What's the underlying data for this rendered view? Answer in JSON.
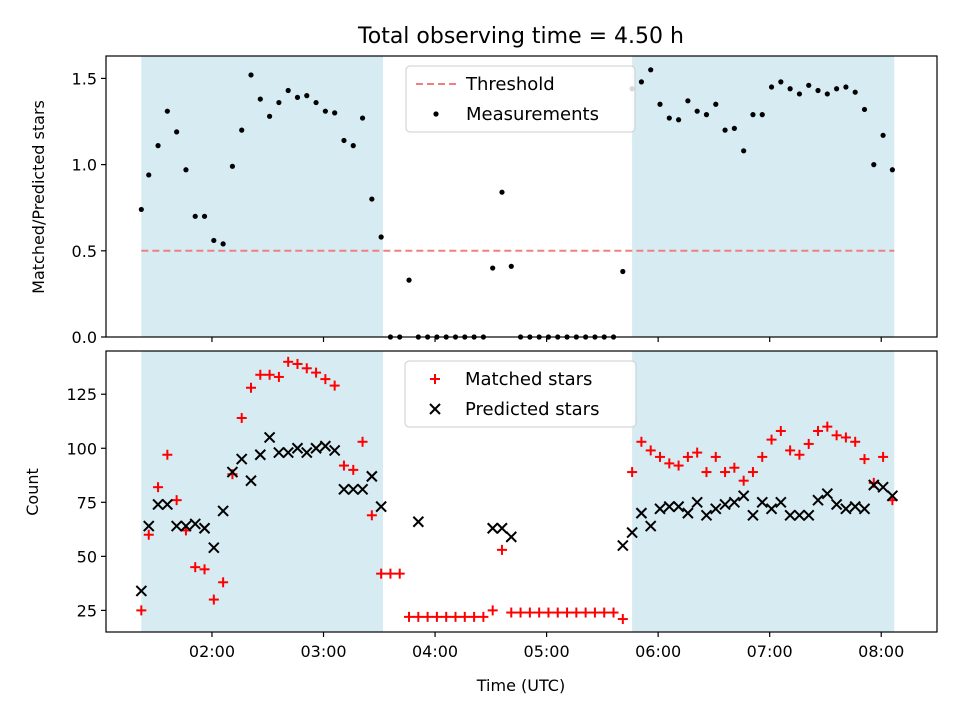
{
  "chart_data": [
    {
      "type": "scatter",
      "title": "Total observing time = 4.50 h",
      "xlabel": "",
      "ylabel": "Matched/Predicted stars",
      "ylim": [
        0,
        1.63
      ],
      "yticks": [
        "0.0",
        "0.5",
        "1.0",
        "1.5"
      ],
      "ytick_values": [
        0,
        0.5,
        1.0,
        1.5
      ],
      "legend": {
        "placement": "top-center",
        "entries": [
          "Threshold",
          "Measurements"
        ]
      },
      "threshold": {
        "name": "Threshold",
        "value": 0.5,
        "color": "#f08080"
      },
      "shaded_ranges": [
        [
          "01:22",
          "03:32"
        ],
        [
          "05:46",
          "08:07"
        ]
      ],
      "shade_color": "#add8e6",
      "series": [
        {
          "name": "Measurements",
          "color": "#000000",
          "points": [
            [
              "01:22",
              0.74
            ],
            [
              "01:26",
              0.94
            ],
            [
              "01:31",
              1.11
            ],
            [
              "01:36",
              1.31
            ],
            [
              "01:41",
              1.19
            ],
            [
              "01:46",
              0.97
            ],
            [
              "01:51",
              0.7
            ],
            [
              "01:56",
              0.7
            ],
            [
              "02:01",
              0.56
            ],
            [
              "02:06",
              0.54
            ],
            [
              "02:11",
              0.99
            ],
            [
              "02:16",
              1.2
            ],
            [
              "02:21",
              1.52
            ],
            [
              "02:26",
              1.38
            ],
            [
              "02:31",
              1.28
            ],
            [
              "02:36",
              1.36
            ],
            [
              "02:41",
              1.43
            ],
            [
              "02:46",
              1.39
            ],
            [
              "02:51",
              1.4
            ],
            [
              "02:56",
              1.36
            ],
            [
              "03:01",
              1.31
            ],
            [
              "03:06",
              1.3
            ],
            [
              "03:11",
              1.14
            ],
            [
              "03:16",
              1.11
            ],
            [
              "03:21",
              1.27
            ],
            [
              "03:26",
              0.8
            ],
            [
              "03:31",
              0.58
            ],
            [
              "03:36",
              0.0
            ],
            [
              "03:41",
              0.0
            ],
            [
              "03:46",
              0.33
            ],
            [
              "03:51",
              0.0
            ],
            [
              "03:56",
              0.0
            ],
            [
              "04:01",
              0.0
            ],
            [
              "04:06",
              0.0
            ],
            [
              "04:11",
              0.0
            ],
            [
              "04:16",
              0.0
            ],
            [
              "04:21",
              0.0
            ],
            [
              "04:26",
              0.0
            ],
            [
              "04:31",
              0.4
            ],
            [
              "04:36",
              0.84
            ],
            [
              "04:41",
              0.41
            ],
            [
              "04:46",
              0.0
            ],
            [
              "04:51",
              0.0
            ],
            [
              "04:56",
              0.0
            ],
            [
              "05:01",
              0.0
            ],
            [
              "05:06",
              0.0
            ],
            [
              "05:11",
              0.0
            ],
            [
              "05:16",
              0.0
            ],
            [
              "05:21",
              0.0
            ],
            [
              "05:26",
              0.0
            ],
            [
              "05:31",
              0.0
            ],
            [
              "05:36",
              0.0
            ],
            [
              "05:41",
              0.38
            ],
            [
              "05:46",
              1.44
            ],
            [
              "05:51",
              1.48
            ],
            [
              "05:56",
              1.55
            ],
            [
              "06:01",
              1.35
            ],
            [
              "06:06",
              1.27
            ],
            [
              "06:11",
              1.26
            ],
            [
              "06:16",
              1.37
            ],
            [
              "06:21",
              1.31
            ],
            [
              "06:26",
              1.29
            ],
            [
              "06:31",
              1.35
            ],
            [
              "06:36",
              1.2
            ],
            [
              "06:41",
              1.21
            ],
            [
              "06:46",
              1.08
            ],
            [
              "06:51",
              1.29
            ],
            [
              "06:56",
              1.29
            ],
            [
              "07:01",
              1.45
            ],
            [
              "07:06",
              1.48
            ],
            [
              "07:11",
              1.44
            ],
            [
              "07:16",
              1.41
            ],
            [
              "07:21",
              1.46
            ],
            [
              "07:26",
              1.43
            ],
            [
              "07:31",
              1.41
            ],
            [
              "07:36",
              1.44
            ],
            [
              "07:41",
              1.45
            ],
            [
              "07:46",
              1.42
            ],
            [
              "07:51",
              1.32
            ],
            [
              "07:56",
              1.0
            ],
            [
              "08:01",
              1.17
            ],
            [
              "08:06",
              0.97
            ]
          ]
        }
      ]
    },
    {
      "type": "scatter",
      "title": "",
      "xlabel": "Time (UTC)",
      "ylabel": "Count",
      "ylim": [
        15,
        145
      ],
      "yticks": [
        "25",
        "50",
        "75",
        "100",
        "125"
      ],
      "ytick_values": [
        25,
        50,
        75,
        100,
        125
      ],
      "xlim": [
        "01:03",
        "08:30"
      ],
      "xticks": [
        "02:00",
        "03:00",
        "04:00",
        "05:00",
        "06:00",
        "07:00",
        "08:00"
      ],
      "legend": {
        "placement": "top-center",
        "entries": [
          "Matched stars",
          "Predicted stars"
        ]
      },
      "shaded_ranges": [
        [
          "01:22",
          "03:32"
        ],
        [
          "05:46",
          "08:07"
        ]
      ],
      "series": [
        {
          "name": "Matched stars",
          "marker": "plus",
          "color": "#ff0000",
          "points": [
            [
              "01:22",
              25
            ],
            [
              "01:26",
              60
            ],
            [
              "01:31",
              82
            ],
            [
              "01:36",
              97
            ],
            [
              "01:41",
              76
            ],
            [
              "01:46",
              62
            ],
            [
              "01:51",
              45
            ],
            [
              "01:56",
              44
            ],
            [
              "02:01",
              30
            ],
            [
              "02:06",
              38
            ],
            [
              "02:11",
              88
            ],
            [
              "02:16",
              114
            ],
            [
              "02:21",
              128
            ],
            [
              "02:26",
              134
            ],
            [
              "02:31",
              134
            ],
            [
              "02:36",
              133
            ],
            [
              "02:41",
              140
            ],
            [
              "02:46",
              139
            ],
            [
              "02:51",
              137
            ],
            [
              "02:56",
              135
            ],
            [
              "03:01",
              132
            ],
            [
              "03:06",
              129
            ],
            [
              "03:11",
              92
            ],
            [
              "03:16",
              90
            ],
            [
              "03:21",
              103
            ],
            [
              "03:26",
              69
            ],
            [
              "03:31",
              42
            ],
            [
              "03:36",
              42
            ],
            [
              "03:41",
              42
            ],
            [
              "03:46",
              22
            ],
            [
              "03:51",
              22
            ],
            [
              "03:56",
              22
            ],
            [
              "04:01",
              22
            ],
            [
              "04:06",
              22
            ],
            [
              "04:11",
              22
            ],
            [
              "04:16",
              22
            ],
            [
              "04:21",
              22
            ],
            [
              "04:26",
              22
            ],
            [
              "04:31",
              25
            ],
            [
              "04:36",
              53
            ],
            [
              "04:41",
              24
            ],
            [
              "04:46",
              24
            ],
            [
              "04:51",
              24
            ],
            [
              "04:56",
              24
            ],
            [
              "05:01",
              24
            ],
            [
              "05:06",
              24
            ],
            [
              "05:11",
              24
            ],
            [
              "05:16",
              24
            ],
            [
              "05:21",
              24
            ],
            [
              "05:26",
              24
            ],
            [
              "05:31",
              24
            ],
            [
              "05:36",
              24
            ],
            [
              "05:41",
              21
            ],
            [
              "05:46",
              89
            ],
            [
              "05:51",
              103
            ],
            [
              "05:56",
              99
            ],
            [
              "06:01",
              96
            ],
            [
              "06:06",
              93
            ],
            [
              "06:11",
              92
            ],
            [
              "06:16",
              96
            ],
            [
              "06:21",
              98
            ],
            [
              "06:26",
              89
            ],
            [
              "06:31",
              96
            ],
            [
              "06:36",
              89
            ],
            [
              "06:41",
              91
            ],
            [
              "06:46",
              85
            ],
            [
              "06:51",
              89
            ],
            [
              "06:56",
              96
            ],
            [
              "07:01",
              104
            ],
            [
              "07:06",
              108
            ],
            [
              "07:11",
              99
            ],
            [
              "07:16",
              97
            ],
            [
              "07:21",
              102
            ],
            [
              "07:26",
              108
            ],
            [
              "07:31",
              110
            ],
            [
              "07:36",
              106
            ],
            [
              "07:41",
              105
            ],
            [
              "07:46",
              103
            ],
            [
              "07:51",
              95
            ],
            [
              "07:56",
              84
            ],
            [
              "08:01",
              96
            ],
            [
              "08:06",
              76
            ]
          ]
        },
        {
          "name": "Predicted stars",
          "marker": "cross",
          "color": "#000000",
          "points": [
            [
              "01:22",
              34
            ],
            [
              "01:26",
              64
            ],
            [
              "01:31",
              74
            ],
            [
              "01:36",
              74
            ],
            [
              "01:41",
              64
            ],
            [
              "01:46",
              64
            ],
            [
              "01:51",
              65
            ],
            [
              "01:56",
              63
            ],
            [
              "02:01",
              54
            ],
            [
              "02:06",
              71
            ],
            [
              "02:11",
              89
            ],
            [
              "02:16",
              95
            ],
            [
              "02:21",
              85
            ],
            [
              "02:26",
              97
            ],
            [
              "02:31",
              105
            ],
            [
              "02:36",
              98
            ],
            [
              "02:41",
              98
            ],
            [
              "02:46",
              100
            ],
            [
              "02:51",
              98
            ],
            [
              "02:56",
              100
            ],
            [
              "03:01",
              101
            ],
            [
              "03:06",
              99
            ],
            [
              "03:11",
              81
            ],
            [
              "03:16",
              81
            ],
            [
              "03:21",
              81
            ],
            [
              "03:26",
              87
            ],
            [
              "03:31",
              73
            ],
            [
              "03:51",
              66
            ],
            [
              "04:31",
              63
            ],
            [
              "04:36",
              63
            ],
            [
              "04:41",
              59
            ],
            [
              "05:41",
              55
            ],
            [
              "05:46",
              61
            ],
            [
              "05:51",
              70
            ],
            [
              "05:56",
              64
            ],
            [
              "06:01",
              72
            ],
            [
              "06:06",
              73
            ],
            [
              "06:11",
              73
            ],
            [
              "06:16",
              70
            ],
            [
              "06:21",
              75
            ],
            [
              "06:26",
              69
            ],
            [
              "06:31",
              72
            ],
            [
              "06:36",
              74
            ],
            [
              "06:41",
              75
            ],
            [
              "06:46",
              78
            ],
            [
              "06:51",
              69
            ],
            [
              "06:56",
              75
            ],
            [
              "07:01",
              72
            ],
            [
              "07:06",
              75
            ],
            [
              "07:11",
              69
            ],
            [
              "07:16",
              69
            ],
            [
              "07:21",
              69
            ],
            [
              "07:26",
              76
            ],
            [
              "07:31",
              79
            ],
            [
              "07:36",
              74
            ],
            [
              "07:41",
              72
            ],
            [
              "07:46",
              73
            ],
            [
              "07:51",
              72
            ],
            [
              "07:56",
              83
            ],
            [
              "08:01",
              82
            ],
            [
              "08:06",
              78
            ]
          ]
        }
      ]
    }
  ]
}
